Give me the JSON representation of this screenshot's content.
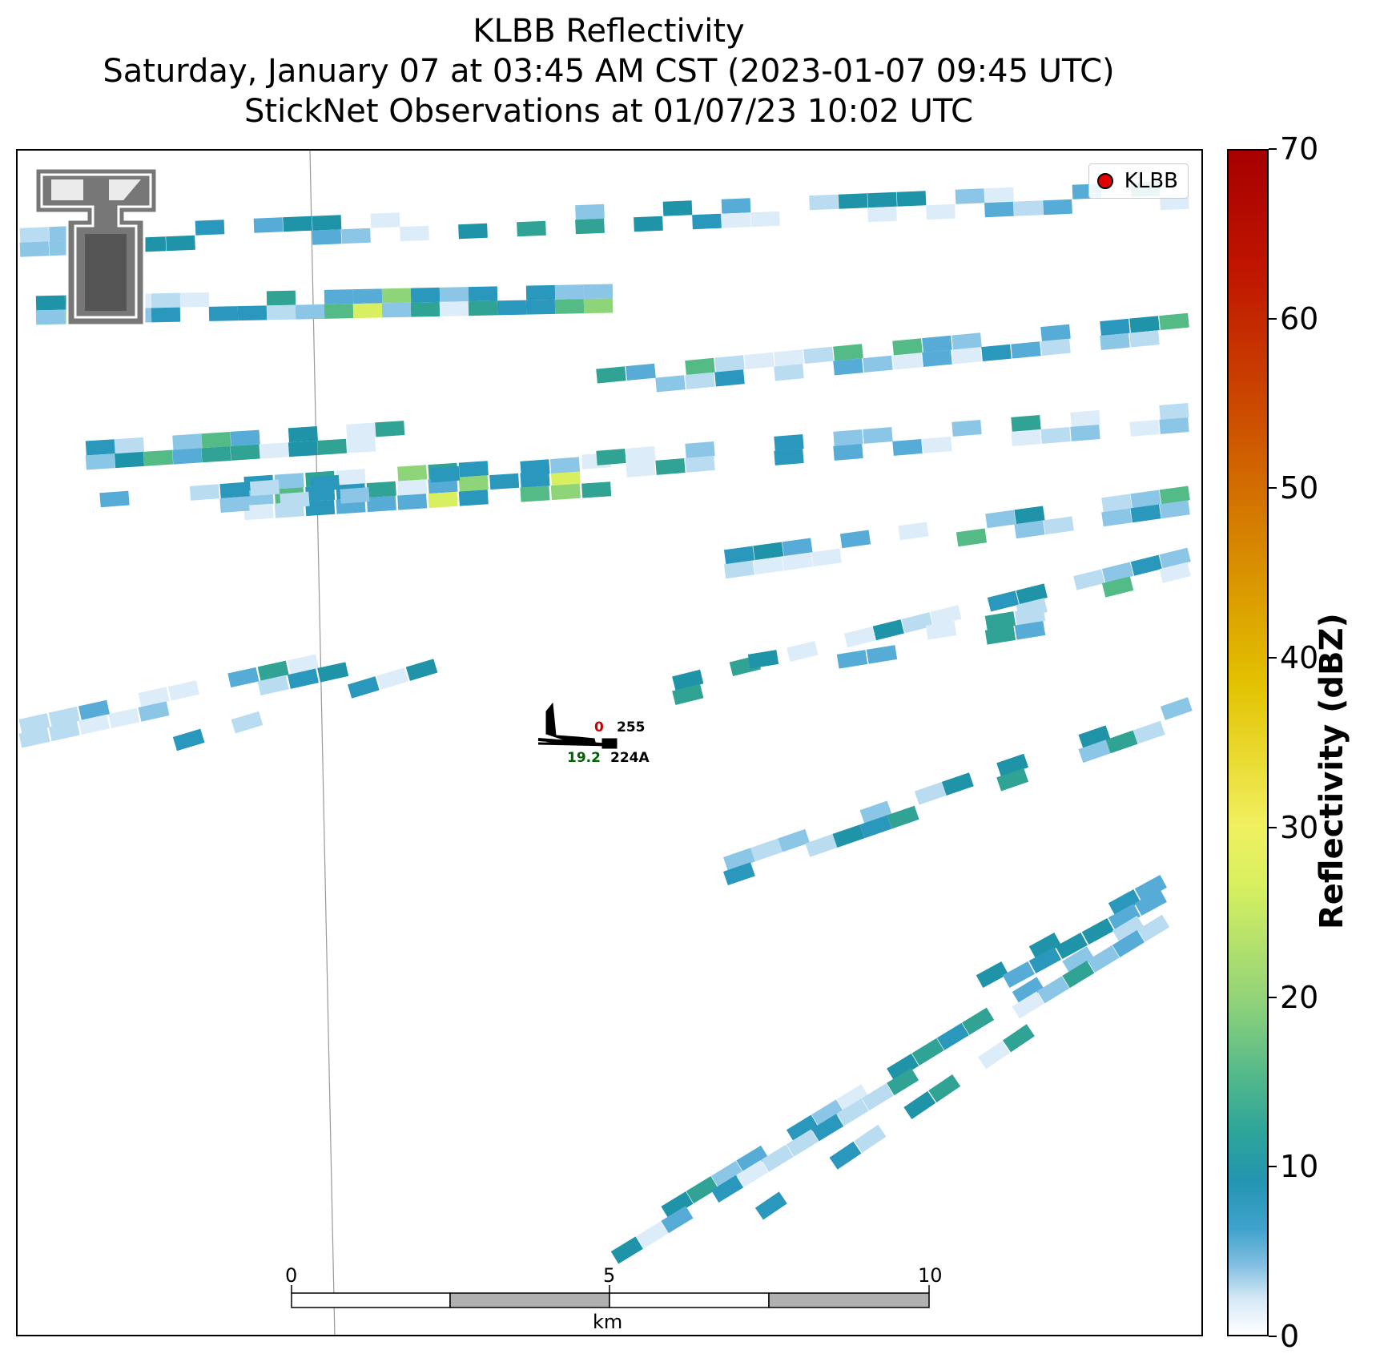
{
  "header": {
    "title_line1": "KLBB Reflectivity",
    "title_line2": "Saturday, January 07 at 03:45 AM CST (2023-01-07 09:45 UTC)",
    "title_line3": "StickNet Observations at 01/07/23 10:02 UTC"
  },
  "legend": {
    "label": "KLBB",
    "marker_color": "#e00000"
  },
  "station": {
    "id": "224A",
    "top_right_value": "255",
    "top_left_value": "0",
    "bottom_left_value": "19.2",
    "top_left_color": "#cc0000",
    "bottom_left_color": "#006400"
  },
  "scalebar": {
    "ticks": [
      "0",
      "5",
      "10"
    ],
    "unit": "km"
  },
  "colorbar": {
    "label": "Reflectivity (dBZ)",
    "ticks": [
      "0",
      "10",
      "20",
      "30",
      "40",
      "50",
      "60",
      "70"
    ],
    "range": [
      0,
      70
    ]
  },
  "logo": {
    "name": "texas-tech-double-t-logo"
  }
}
